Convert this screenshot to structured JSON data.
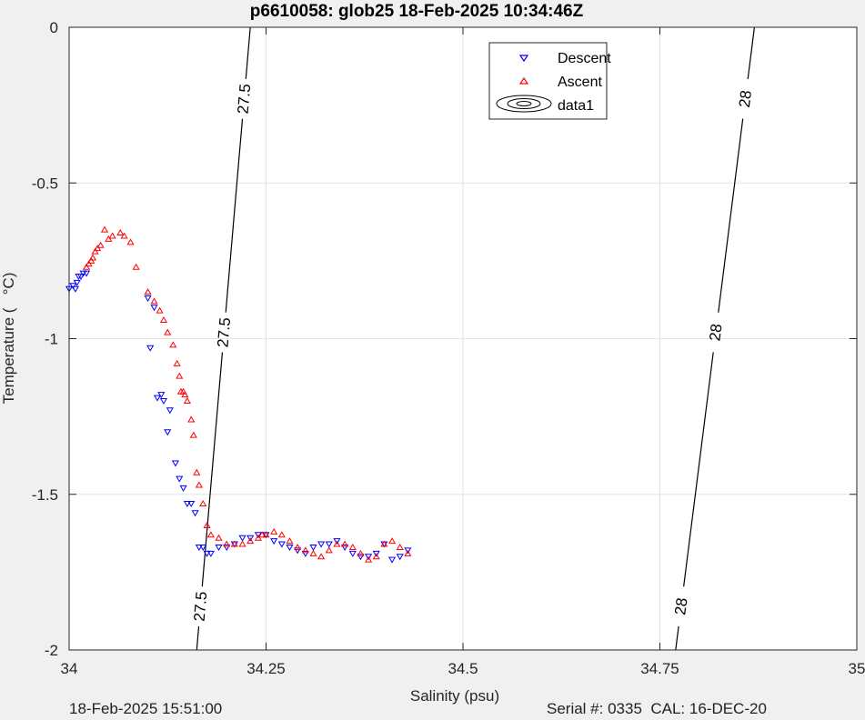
{
  "chart_data": {
    "type": "scatter",
    "title": "p6610058: glob25 18-Feb-2025 10:34:46Z",
    "xlabel": "Salinity (psu)",
    "ylabel": "Temperature (   °C)",
    "xlim": [
      34,
      35
    ],
    "ylim": [
      -2,
      0
    ],
    "xticks": [
      34,
      34.25,
      34.5,
      34.75,
      35
    ],
    "xtick_labels": [
      "34",
      "34.25",
      "34.5",
      "34.75",
      "35"
    ],
    "yticks": [
      0,
      -0.5,
      -1,
      -1.5,
      -2
    ],
    "ytick_labels": [
      "0",
      "-0.5",
      "-1",
      "-1.5",
      "-2"
    ],
    "grid": true,
    "legend_position": "top-center",
    "legend": [
      {
        "name": "Descent",
        "marker": "triangle-down",
        "color": "#0000ff"
      },
      {
        "name": "Ascent",
        "marker": "triangle-up",
        "color": "#ff0000"
      },
      {
        "name": "data1",
        "marker": "contour",
        "color": "#000000"
      }
    ],
    "series": [
      {
        "name": "Descent",
        "color": "#0000ff",
        "x": [
          34.0,
          34.005,
          34.008,
          34.01,
          34.012,
          34.015,
          34.018,
          34.022,
          34.1,
          34.103,
          34.108,
          34.112,
          34.117,
          34.12,
          34.125,
          34.128,
          34.135,
          34.14,
          34.145,
          34.15,
          34.155,
          34.16,
          34.165,
          34.17,
          34.175,
          34.18,
          34.19,
          34.2,
          34.21,
          34.22,
          34.23,
          34.24,
          34.25,
          34.26,
          34.27,
          34.28,
          34.29,
          34.3,
          34.31,
          34.32,
          34.33,
          34.34,
          34.35,
          34.36,
          34.37,
          34.38,
          34.39,
          34.4,
          34.41,
          34.42,
          34.43
        ],
        "y": [
          -0.84,
          -0.83,
          -0.84,
          -0.82,
          -0.8,
          -0.8,
          -0.79,
          -0.79,
          -0.87,
          -1.03,
          -0.9,
          -1.19,
          -1.18,
          -1.2,
          -1.3,
          -1.23,
          -1.4,
          -1.45,
          -1.48,
          -1.53,
          -1.53,
          -1.56,
          -1.67,
          -1.67,
          -1.69,
          -1.69,
          -1.67,
          -1.67,
          -1.66,
          -1.64,
          -1.64,
          -1.63,
          -1.63,
          -1.65,
          -1.66,
          -1.67,
          -1.68,
          -1.69,
          -1.67,
          -1.66,
          -1.66,
          -1.65,
          -1.67,
          -1.69,
          -1.7,
          -1.7,
          -1.69,
          -1.66,
          -1.71,
          -1.7,
          -1.68
        ]
      },
      {
        "name": "Ascent",
        "color": "#ff0000",
        "x": [
          34.022,
          34.025,
          34.028,
          34.03,
          34.033,
          34.036,
          34.04,
          34.045,
          34.05,
          34.055,
          34.065,
          34.07,
          34.078,
          34.085,
          34.1,
          34.108,
          34.115,
          34.12,
          34.125,
          34.132,
          34.137,
          34.14,
          34.142,
          34.145,
          34.147,
          34.15,
          34.155,
          34.158,
          34.162,
          34.165,
          34.17,
          34.175,
          34.18,
          34.19,
          34.2,
          34.21,
          34.22,
          34.23,
          34.24,
          34.245,
          34.25,
          34.26,
          34.27,
          34.28,
          34.29,
          34.3,
          34.31,
          34.32,
          34.33,
          34.34,
          34.35,
          34.36,
          34.37,
          34.38,
          34.39,
          34.4,
          34.41,
          34.42,
          34.43
        ],
        "y": [
          -0.77,
          -0.76,
          -0.75,
          -0.74,
          -0.72,
          -0.71,
          -0.7,
          -0.65,
          -0.68,
          -0.67,
          -0.66,
          -0.67,
          -0.69,
          -0.77,
          -0.85,
          -0.88,
          -0.91,
          -0.94,
          -0.98,
          -1.02,
          -1.08,
          -1.12,
          -1.17,
          -1.17,
          -1.18,
          -1.2,
          -1.26,
          -1.31,
          -1.43,
          -1.47,
          -1.53,
          -1.6,
          -1.63,
          -1.64,
          -1.66,
          -1.66,
          -1.66,
          -1.65,
          -1.64,
          -1.63,
          -1.63,
          -1.62,
          -1.63,
          -1.65,
          -1.67,
          -1.68,
          -1.69,
          -1.7,
          -1.68,
          -1.66,
          -1.66,
          -1.67,
          -1.69,
          -1.71,
          -1.7,
          -1.66,
          -1.65,
          -1.67,
          -1.69
        ]
      }
    ],
    "contours": [
      {
        "level": "27.5",
        "x": [
          34.162,
          34.23
        ],
        "y": [
          -2,
          0
        ]
      },
      {
        "level": "28",
        "x": [
          34.77,
          34.87
        ],
        "y": [
          -2,
          0
        ]
      }
    ]
  },
  "footer": {
    "timestamp": "18-Feb-2025 15:51:00",
    "serial": "Serial #: 0335  CAL: 16-DEC-20"
  }
}
